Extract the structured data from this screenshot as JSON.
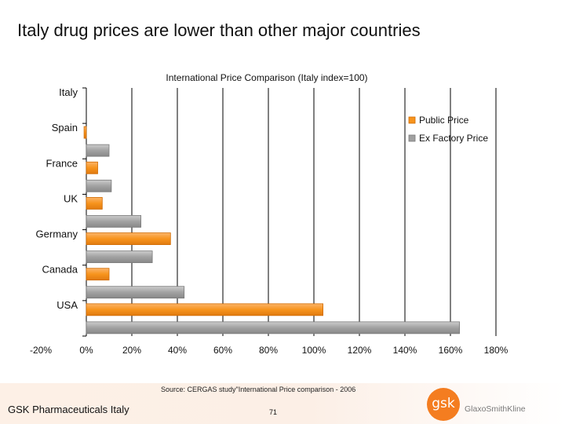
{
  "slide": {
    "title": "Italy drug prices are lower than other major countries",
    "source": "Source: CERGAS study\"International Price comparison - 2006",
    "company": "GSK Pharmaceuticals Italy",
    "page_number": "71",
    "logo_mark": "gsk",
    "logo_text": "GlaxoSmithKline"
  },
  "chart_data": {
    "type": "bar",
    "orientation": "horizontal",
    "title": "International Price Comparison (Italy index=100)",
    "categories": [
      "Italy",
      "Spain",
      "France",
      "UK",
      "Germany",
      "Canada",
      "USA"
    ],
    "series": [
      {
        "name": "Public Price",
        "color": "#f7941d",
        "values": [
          0,
          -1,
          5,
          7,
          37,
          10,
          104
        ]
      },
      {
        "name": "Ex Factory Price",
        "color": "#a0a0a0",
        "values": [
          0,
          10,
          11,
          24,
          29,
          43,
          164
        ]
      }
    ],
    "xlim": [
      -20,
      180
    ],
    "xticks": [
      "-20%",
      "0%",
      "20%",
      "40%",
      "60%",
      "80%",
      "100%",
      "120%",
      "140%",
      "160%",
      "180%"
    ],
    "xlabel": "",
    "ylabel": "",
    "grid": true,
    "legend": "top-right"
  }
}
